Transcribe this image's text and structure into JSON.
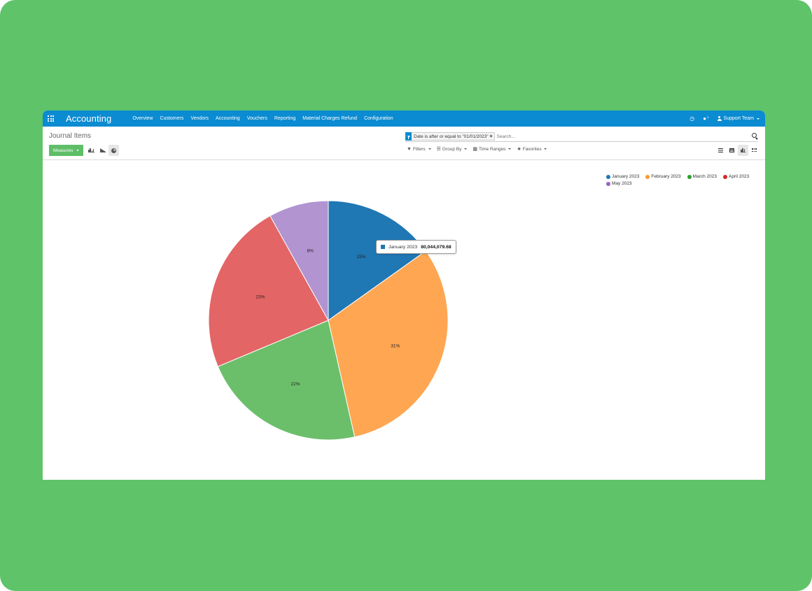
{
  "navbar": {
    "app_title": "Accounting",
    "menu": [
      "Overview",
      "Customers",
      "Vendors",
      "Accounting",
      "Vouchers",
      "Reporting",
      "Material Charges Refund",
      "Configuration"
    ],
    "messages_badge": "1",
    "user": "Support Team"
  },
  "control_panel": {
    "title": "Journal Items",
    "measures_label": "Measures",
    "search": {
      "facet": "Date is after or equal to \"01/01/2023\"",
      "placeholder": "Search..."
    },
    "filters_label": "Filters",
    "group_by_label": "Group By",
    "time_ranges_label": "Time Ranges",
    "favorites_label": "Favorites"
  },
  "tooltip": {
    "label": "January 2023",
    "value": "80,044,079.68",
    "color": "#1f77b4"
  },
  "chart_data": {
    "type": "pie",
    "title": "",
    "categories": [
      "January 2023",
      "February 2023",
      "March 2023",
      "April 2023",
      "May 2023"
    ],
    "values": [
      15,
      31,
      22,
      23,
      8
    ],
    "labels": [
      "15%",
      "31%",
      "22%",
      "23%",
      "8%"
    ],
    "colors": [
      "#1f77b4",
      "#ffa652",
      "#6cbf6a",
      "#e36565",
      "#b294d1"
    ],
    "legend_colors": [
      "#1f77b4",
      "#ff9933",
      "#2ca02c",
      "#d62728",
      "#9467bd"
    ],
    "legend_position": "top-right"
  }
}
